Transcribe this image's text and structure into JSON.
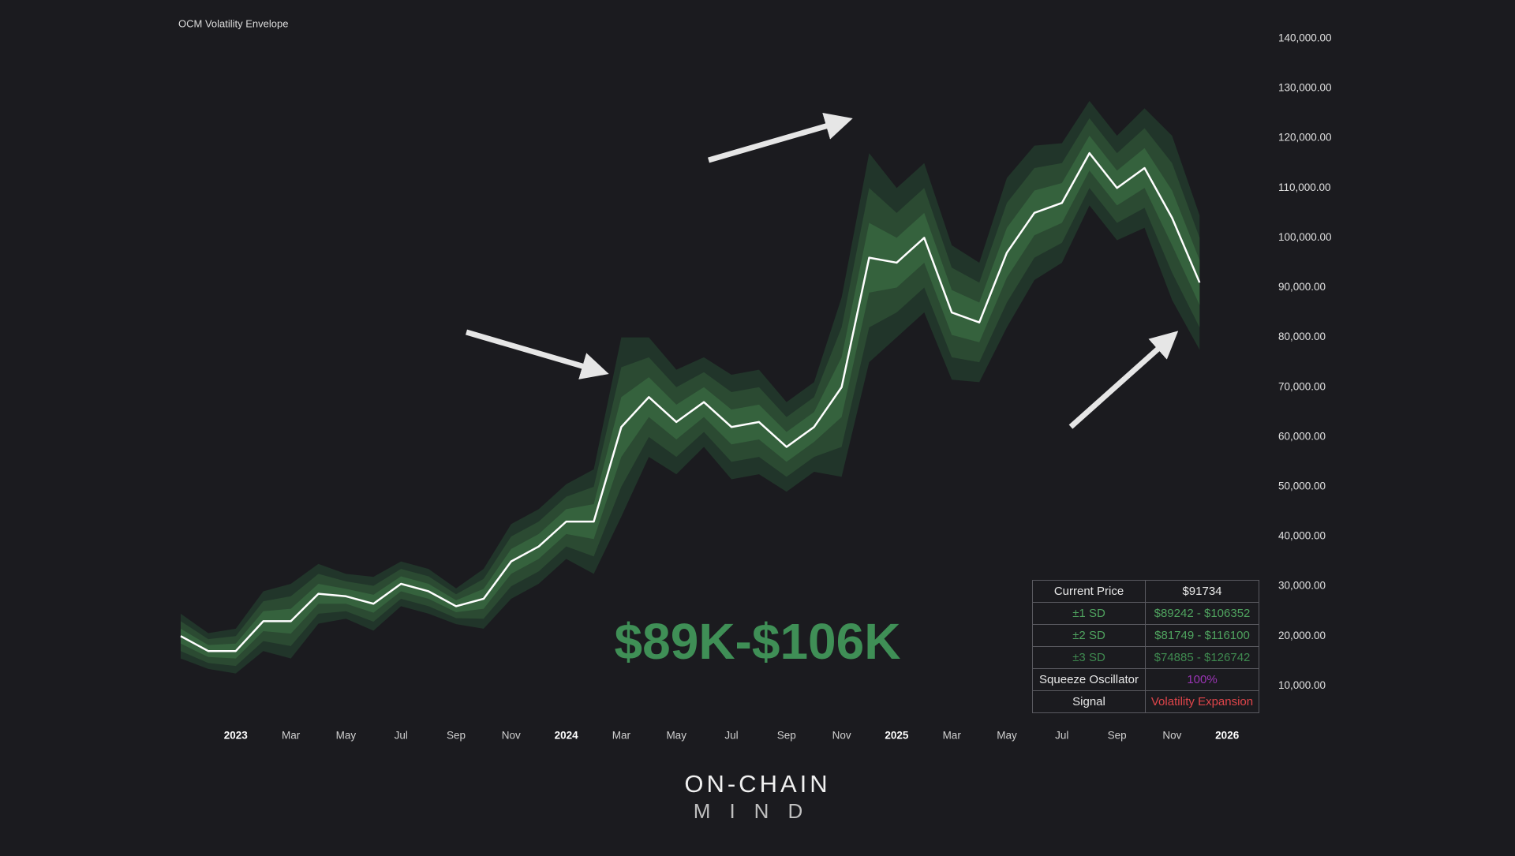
{
  "chart_data": {
    "type": "line",
    "title": "OCM Volatility Envelope",
    "annotation": "$89K-$106K",
    "x": [
      "2022-11",
      "2022-12",
      "2023-01",
      "2023-02",
      "2023-03",
      "2023-04",
      "2023-05",
      "2023-06",
      "2023-07",
      "2023-08",
      "2023-09",
      "2023-10",
      "2023-11",
      "2023-12",
      "2024-01",
      "2024-02",
      "2024-03",
      "2024-04",
      "2024-05",
      "2024-06",
      "2024-07",
      "2024-08",
      "2024-09",
      "2024-10",
      "2024-11",
      "2024-12",
      "2025-01",
      "2025-02",
      "2025-03",
      "2025-04",
      "2025-05",
      "2025-06",
      "2025-07",
      "2025-08",
      "2025-09",
      "2025-10",
      "2025-11",
      "2025-12"
    ],
    "values": [
      20000,
      17000,
      17000,
      23000,
      23000,
      28500,
      28000,
      26500,
      30500,
      29000,
      26000,
      27500,
      35000,
      38000,
      43000,
      43000,
      62000,
      68000,
      63000,
      67000,
      62000,
      63000,
      58000,
      62000,
      70000,
      96000,
      95000,
      100000,
      85000,
      83000,
      97000,
      105000,
      107000,
      117000,
      110000,
      114000,
      104000,
      91000
    ],
    "color": "#ffffff",
    "bands": [
      {
        "color": "#21352a",
        "errors": [
          4500,
          3600,
          4500,
          6000,
          7500,
          6000,
          4500,
          5400,
          4500,
          4500,
          3600,
          6000,
          7500,
          7500,
          7500,
          10500,
          18000,
          12000,
          10500,
          9000,
          10500,
          10500,
          9000,
          9000,
          18000,
          21000,
          15000,
          15000,
          13500,
          12000,
          15000,
          13500,
          12000,
          10500,
          10500,
          12000,
          16500,
          13500
        ]
      },
      {
        "color": "#2b4a32",
        "errors": [
          3000,
          2400,
          3000,
          4000,
          5000,
          4000,
          3000,
          3600,
          3000,
          3000,
          2400,
          4000,
          5000,
          5000,
          5000,
          7000,
          12000,
          8000,
          7000,
          6000,
          7000,
          7000,
          6000,
          6000,
          12000,
          14000,
          10000,
          10000,
          9000,
          8000,
          10000,
          9000,
          8000,
          7000,
          7000,
          8000,
          11000,
          9000
        ]
      },
      {
        "color": "#35623d",
        "errors": [
          1500,
          1200,
          1500,
          2000,
          2500,
          2000,
          1500,
          1800,
          1500,
          1500,
          1200,
          2000,
          2500,
          2500,
          2500,
          3500,
          6000,
          4000,
          3500,
          3000,
          3500,
          3500,
          3000,
          3000,
          6000,
          7000,
          5000,
          5000,
          4500,
          4000,
          5000,
          4500,
          4000,
          3500,
          3500,
          4000,
          5500,
          4500
        ]
      }
    ],
    "ylim": [
      0,
      145000
    ],
    "yticks": [
      {
        "value": 10000,
        "label": "10,000.00"
      },
      {
        "value": 20000,
        "label": "20,000.00"
      },
      {
        "value": 30000,
        "label": "30,000.00"
      },
      {
        "value": 40000,
        "label": "40,000.00"
      },
      {
        "value": 50000,
        "label": "50,000.00"
      },
      {
        "value": 60000,
        "label": "60,000.00"
      },
      {
        "value": 70000,
        "label": "70,000.00"
      },
      {
        "value": 80000,
        "label": "80,000.00"
      },
      {
        "value": 90000,
        "label": "90,000.00"
      },
      {
        "value": 100000,
        "label": "100,000.00"
      },
      {
        "value": 110000,
        "label": "110,000.00"
      },
      {
        "value": 120000,
        "label": "120,000.00"
      },
      {
        "value": 130000,
        "label": "130,000.00"
      },
      {
        "value": 140000,
        "label": "140,000.00"
      }
    ],
    "xticks": [
      {
        "value": "2023-01",
        "label": "2023"
      },
      {
        "value": "2023-03",
        "label": "Mar"
      },
      {
        "value": "2023-05",
        "label": "May"
      },
      {
        "value": "2023-07",
        "label": "Jul"
      },
      {
        "value": "2023-09",
        "label": "Sep"
      },
      {
        "value": "2023-11",
        "label": "Nov"
      },
      {
        "value": "2024-01",
        "label": "2024"
      },
      {
        "value": "2024-03",
        "label": "Mar"
      },
      {
        "value": "2024-05",
        "label": "May"
      },
      {
        "value": "2024-07",
        "label": "Jul"
      },
      {
        "value": "2024-09",
        "label": "Sep"
      },
      {
        "value": "2024-11",
        "label": "Nov"
      },
      {
        "value": "2025-01",
        "label": "2025"
      },
      {
        "value": "2025-03",
        "label": "Mar"
      },
      {
        "value": "2025-05",
        "label": "May"
      },
      {
        "value": "2025-07",
        "label": "Jul"
      },
      {
        "value": "2025-09",
        "label": "Sep"
      },
      {
        "value": "2025-11",
        "label": "Nov"
      },
      {
        "value": "2026-01",
        "label": "2026"
      }
    ]
  },
  "table": {
    "rows": [
      [
        "Current Price",
        "$91734"
      ],
      [
        "±1 SD",
        "$89242 - $106352"
      ],
      [
        "±2 SD",
        "$81749 - $116100"
      ],
      [
        "±3 SD",
        "$74885 - $126742"
      ],
      [
        "Squeeze Oscillator",
        "100%"
      ],
      [
        "Signal",
        "Volatility Expansion"
      ]
    ]
  },
  "brand": {
    "line1": "ON-CHAIN",
    "line2": "MIND"
  }
}
